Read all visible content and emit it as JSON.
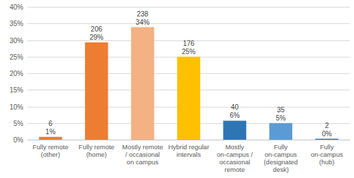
{
  "chart_data": {
    "type": "bar",
    "categories": [
      "Fully remote (other)",
      "Fully remote (home)",
      "Mostly remote / occasional on campus",
      "Hybrid regular intervals",
      "Mostly on-campus / occasional remote",
      "Fully on-campus (designated desk)",
      "Fully on-campus (hub)"
    ],
    "values": [
      0.85,
      29.3,
      33.9,
      25.0,
      5.7,
      5.0,
      0.28
    ],
    "value_labels": [
      "1%",
      "29%",
      "34%",
      "25%",
      "6%",
      "5%",
      "0%"
    ],
    "counts": [
      6,
      206,
      238,
      176,
      40,
      35,
      2
    ],
    "colors": [
      "#ed7d31",
      "#ed7d31",
      "#f4b183",
      "#ffc000",
      "#2e75b6",
      "#5b9bd5",
      "#2e75b6"
    ],
    "ylim": [
      0,
      40
    ],
    "yticks": [
      {
        "value": 0,
        "label": "0%"
      },
      {
        "value": 5,
        "label": "5%"
      },
      {
        "value": 10,
        "label": "10%"
      },
      {
        "value": 15,
        "label": "15%"
      },
      {
        "value": 20,
        "label": "20%"
      },
      {
        "value": 25,
        "label": "25%"
      },
      {
        "value": 30,
        "label": "30%"
      },
      {
        "value": 35,
        "label": "35%"
      },
      {
        "value": 40,
        "label": "40%"
      }
    ],
    "grid": true,
    "data_labels": true
  }
}
